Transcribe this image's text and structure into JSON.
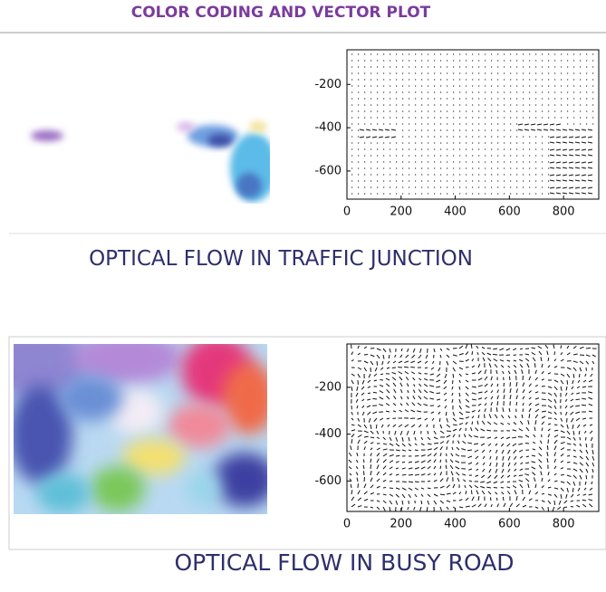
{
  "title": "COLOR CODING AND VECTOR PLOT",
  "chart_data": [
    {
      "type": "vector",
      "xlim": [
        0,
        930
      ],
      "ylim": [
        -730,
        -40
      ],
      "xticks": [
        0,
        200,
        400,
        600,
        800
      ],
      "yticks": [
        -200,
        -400,
        -600
      ]
    },
    {
      "type": "vector",
      "xlim": [
        0,
        930
      ],
      "ylim": [
        -730,
        -15
      ],
      "xticks": [
        0,
        200,
        400,
        600,
        800
      ],
      "yticks": [
        -200,
        -400,
        -600
      ]
    }
  ],
  "captions": [
    "OPTICAL FLOW IN TRAFFIC JUNCTION",
    "OPTICAL FLOW IN BUSY ROAD"
  ]
}
